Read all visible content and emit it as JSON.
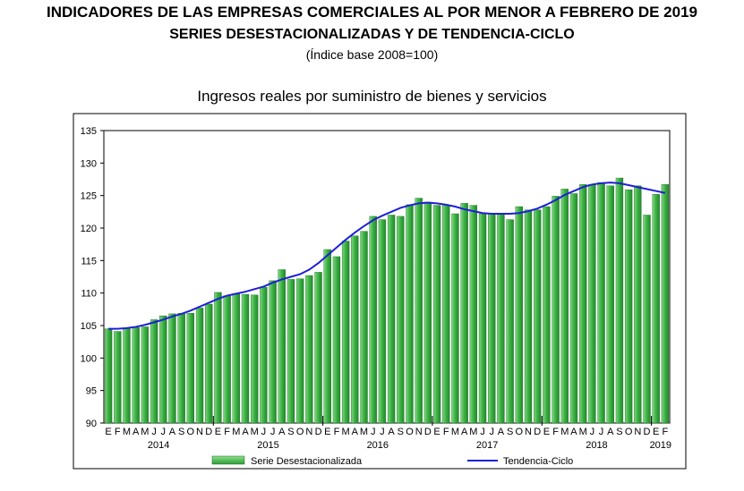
{
  "header": {
    "title_line1": "INDICADORES DE LAS EMPRESAS COMERCIALES AL POR MENOR A FEBRERO DE 2019",
    "title_line2": "SERIES DESESTACIONALIZADAS Y DE TENDENCIA-CICLO",
    "title_line3": "(Índice base 2008=100)"
  },
  "chart_data": {
    "type": "bar",
    "title": "Ingresos reales por suministro de bienes y servicios",
    "xlabel": "",
    "ylabel": "",
    "ylim": [
      90,
      135
    ],
    "yticks": [
      90,
      95,
      100,
      105,
      110,
      115,
      120,
      125,
      130,
      135
    ],
    "grid": false,
    "legend_position": "bottom",
    "month_letters": [
      "E",
      "F",
      "M",
      "A",
      "M",
      "J",
      "J",
      "A",
      "S",
      "O",
      "N",
      "D"
    ],
    "years": [
      "2014",
      "2015",
      "2016",
      "2017",
      "2018",
      "2019"
    ],
    "categories": [
      "E",
      "F",
      "M",
      "A",
      "M",
      "J",
      "J",
      "A",
      "S",
      "O",
      "N",
      "D",
      "E",
      "F",
      "M",
      "A",
      "M",
      "J",
      "J",
      "A",
      "S",
      "O",
      "N",
      "D",
      "E",
      "F",
      "M",
      "A",
      "M",
      "J",
      "J",
      "A",
      "S",
      "O",
      "N",
      "D",
      "E",
      "F",
      "M",
      "A",
      "M",
      "J",
      "J",
      "A",
      "S",
      "O",
      "N",
      "D",
      "E",
      "F",
      "M",
      "A",
      "M",
      "J",
      "J",
      "A",
      "S",
      "O",
      "N",
      "D",
      "E",
      "F"
    ],
    "series": [
      {
        "name": "Serie Desestacionalizada",
        "kind": "bar",
        "color": "#3cb043",
        "values": [
          104.5,
          104.1,
          104.6,
          104.7,
          104.8,
          105.9,
          106.5,
          106.8,
          106.9,
          106.9,
          107.7,
          108.3,
          110.1,
          109.6,
          109.9,
          109.8,
          109.7,
          110.9,
          111.9,
          113.6,
          112.1,
          112.2,
          112.7,
          113.2,
          116.7,
          115.6,
          118.0,
          118.8,
          119.5,
          121.8,
          121.3,
          122.0,
          121.8,
          123.6,
          124.6,
          124.0,
          123.5,
          123.5,
          122.2,
          123.8,
          123.5,
          122.2,
          122.2,
          122.3,
          121.3,
          123.3,
          122.8,
          122.8,
          123.3,
          124.9,
          126.0,
          125.3,
          126.7,
          126.7,
          127.0,
          126.5,
          127.7,
          125.9,
          126.5,
          122.0,
          125.2,
          126.7
        ]
      },
      {
        "name": "Tendencia-Ciclo",
        "kind": "line",
        "color": "#1f1fd6",
        "values": [
          104.5,
          104.5,
          104.6,
          104.8,
          105.1,
          105.5,
          105.9,
          106.4,
          106.8,
          107.3,
          107.9,
          108.5,
          109.1,
          109.6,
          109.9,
          110.2,
          110.6,
          111.0,
          111.6,
          112.1,
          112.5,
          112.9,
          113.6,
          114.6,
          115.8,
          117.0,
          118.2,
          119.3,
          120.3,
          121.2,
          121.9,
          122.5,
          123.1,
          123.5,
          123.8,
          123.9,
          123.8,
          123.6,
          123.3,
          122.9,
          122.6,
          122.3,
          122.2,
          122.2,
          122.2,
          122.3,
          122.6,
          123.0,
          123.6,
          124.3,
          125.1,
          125.7,
          126.3,
          126.7,
          126.9,
          127.0,
          126.9,
          126.6,
          126.3,
          126.0,
          125.7,
          125.4
        ]
      }
    ]
  }
}
